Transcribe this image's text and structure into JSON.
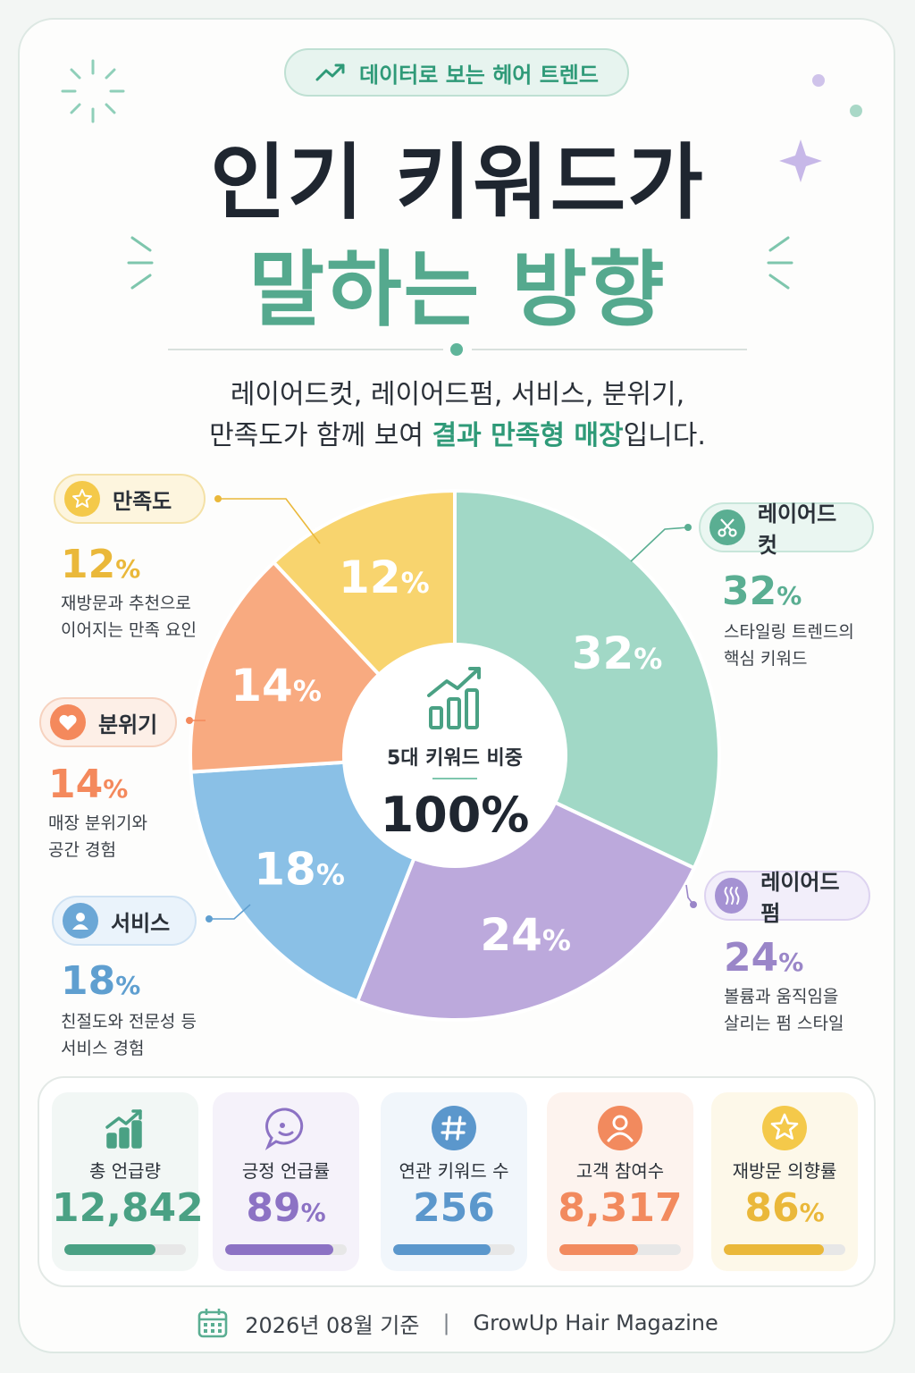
{
  "header": {
    "tag": "데이터로 보는 헤어 트렌드",
    "title_line1": "인기 키워드가",
    "title_line2": "말하는 방향",
    "subtitle_line1": "레이어드컷, 레이어드펌, 서비스, 분위기,",
    "subtitle_line2_pre": "만족도가 함께 보여 ",
    "subtitle_line2_accent": "결과 만족형 매장",
    "subtitle_line2_post": "입니다."
  },
  "chart_data": {
    "type": "pie",
    "categories": [
      "레이어드컷",
      "레이어드펌",
      "서비스",
      "분위기",
      "만족도"
    ],
    "values": [
      32,
      24,
      18,
      14,
      12
    ],
    "unit": "%",
    "colors": [
      "#a1d8c6",
      "#bca9dc",
      "#8ac0e6",
      "#f8aa80",
      "#f8d46e"
    ],
    "center_label": "5대 키워드 비중",
    "center_value": "100%"
  },
  "slice_labels": [
    "32",
    "24",
    "18",
    "14",
    "12"
  ],
  "percent_sign": "%",
  "categories": [
    {
      "name": "레이어드컷",
      "value": "32",
      "desc1": "스타일링 트렌드의",
      "desc2": "핵심 키워드",
      "color": "#5aae92",
      "icon": "scissors-icon"
    },
    {
      "name": "레이어드펌",
      "value": "24",
      "desc1": "볼륨과 움직임을",
      "desc2": "살리는 펌 스타일",
      "color": "#9a86c8",
      "icon": "wave-icon"
    },
    {
      "name": "서비스",
      "value": "18",
      "desc1": "친절도와 전문성 등",
      "desc2": "서비스 경험",
      "color": "#5f9fd0",
      "icon": "person-icon"
    },
    {
      "name": "분위기",
      "value": "14",
      "desc1": "매장 분위기와",
      "desc2": "공간 경험",
      "color": "#f4895c",
      "icon": "heart-icon"
    },
    {
      "name": "만족도",
      "value": "12",
      "desc1": "재방문과 추천으로",
      "desc2": "이어지는 만족 요인",
      "color": "#eab83a",
      "icon": "star-icon"
    }
  ],
  "stats": [
    {
      "label": "총 언급량",
      "value": "12,842",
      "unit": "",
      "color": "#4aa184",
      "fill": 0.75,
      "icon": "growth-chart-icon"
    },
    {
      "label": "긍정 언급률",
      "value": "89",
      "unit": "%",
      "color": "#8c72c4",
      "fill": 0.89,
      "icon": "chat-bubble-icon"
    },
    {
      "label": "연관 키워드 수",
      "value": "256",
      "unit": "",
      "color": "#5b97cc",
      "fill": 0.8,
      "icon": "hashtag-icon"
    },
    {
      "label": "고객 참여수",
      "value": "8,317",
      "unit": "",
      "color": "#f28a5e",
      "fill": 0.65,
      "icon": "user-icon"
    },
    {
      "label": "재방문 의향률",
      "value": "86",
      "unit": "%",
      "color": "#eab83a",
      "fill": 0.82,
      "icon": "star-icon"
    }
  ],
  "footer": {
    "date": "2026년 08월 기준",
    "separator": "|",
    "source": "GrowUp Hair Magazine"
  }
}
